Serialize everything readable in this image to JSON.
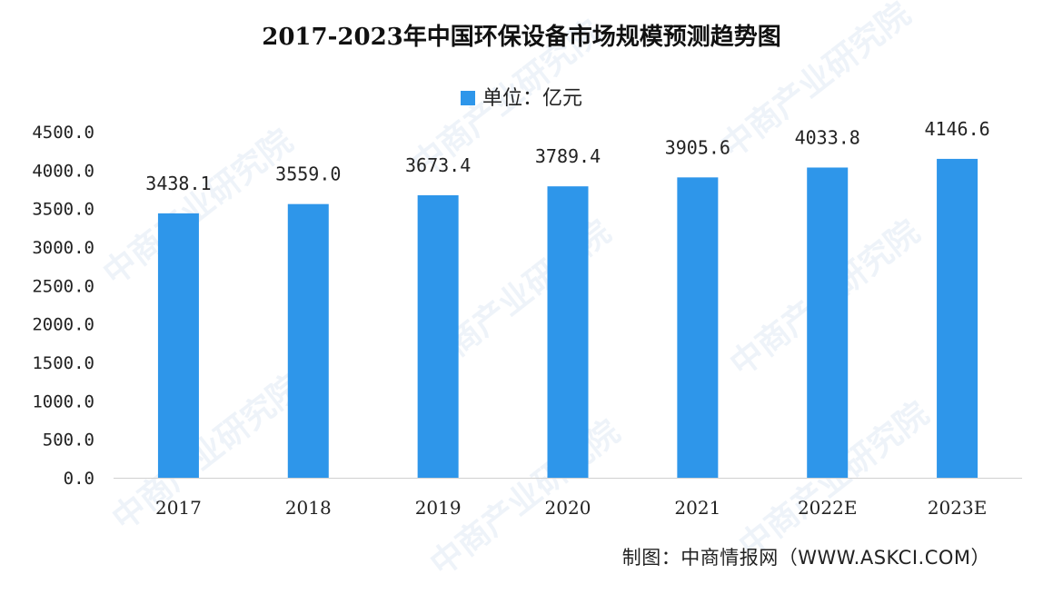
{
  "chart_data": {
    "type": "bar",
    "title": "2017-2023年中国环保设备市场规模预测趋势图",
    "legend": {
      "label": "单位：亿元",
      "placement": "top-center"
    },
    "categories": [
      "2017",
      "2018",
      "2019",
      "2020",
      "2021",
      "2022E",
      "2023E"
    ],
    "series": [
      {
        "values": [
          3438.1,
          3559.0,
          3673.4,
          3789.4,
          3905.6,
          4033.8,
          4146.6
        ]
      }
    ],
    "data_labels": [
      "3438.1",
      "3559.0",
      "3673.4",
      "3789.4",
      "3905.6",
      "4033.8",
      "4146.6"
    ],
    "y_ticks": [
      "0.0",
      "500.0",
      "1000.0",
      "1500.0",
      "2000.0",
      "2500.0",
      "3000.0",
      "3500.0",
      "4000.0",
      "4500.0"
    ],
    "ylim": [
      0,
      4500
    ],
    "grid": false,
    "bar_color": "#2e96ea"
  },
  "source": "制图：中商情报网（WWW.ASKCI.COM）",
  "watermark": "中商产业研究院"
}
